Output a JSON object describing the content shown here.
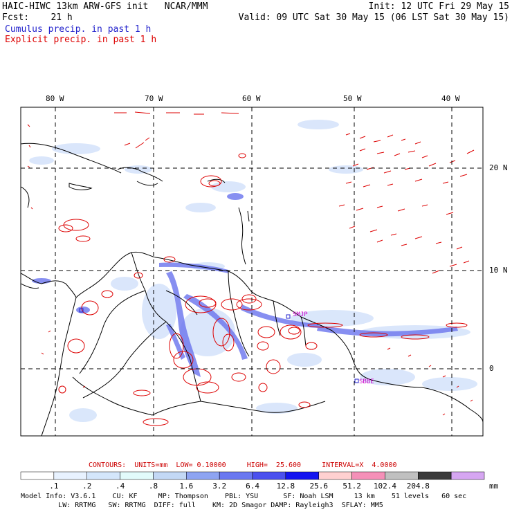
{
  "header": {
    "title": "HAIC-HIWC 13km ARW-GFS init   NCAR/MMM",
    "fcst": "Fcst:    21 h",
    "init": "Init: 12 UTC Fri 29 May 15",
    "valid": "Valid: 09 UTC Sat 30 May 15 (06 LST Sat 30 May 15)",
    "legend_cumulus": "Cumulus precip. in past 1 h",
    "legend_explicit": "Explicit precip. in past 1 h"
  },
  "colors": {
    "cumulus": "#2222cc",
    "explicit": "#dd0000",
    "station": "#cc00cc",
    "contours_text": "#cc0000"
  },
  "map": {
    "lon_labels": [
      "80 W",
      "70 W",
      "60 W",
      "50 W",
      "40 W"
    ],
    "lat_labels": [
      "20 N",
      "10 N",
      "0"
    ],
    "stations": [
      "SMJP",
      "SBBE"
    ]
  },
  "contours": {
    "label": "CONTOURS:  UNITS=mm  LOW= 0.10000     HIGH=  25.600     INTERVAL=X  4.0000"
  },
  "colorbar": {
    "ticks": [
      ".1",
      ".2",
      ".4",
      ".8",
      "1.6",
      "3.2",
      "6.4",
      "12.8",
      "25.6",
      "51.2",
      "102.4",
      "204.8"
    ],
    "unit": "mm",
    "colors": [
      "#ffffff",
      "#e8f2ff",
      "#d4e6fb",
      "#e2fbfb",
      "#c3d8f5",
      "#8ea4f2",
      "#6a78f0",
      "#4b50ee",
      "#1414f0",
      "#ffd0d0",
      "#f590b8",
      "#c0c0c0",
      "#3a3a3a",
      "#d6a6f2"
    ]
  },
  "footer": {
    "line1": "Model Info: V3.6.1    CU: KF     MP: Thompson    PBL: YSU      SF: Noah LSM     13 km    51 levels   60 sec",
    "line2": "         LW: RRTMG   SW: RRTMG  DIFF: full    KM: 2D Smagor DAMP: Rayleigh3  SFLAY: MM5"
  }
}
